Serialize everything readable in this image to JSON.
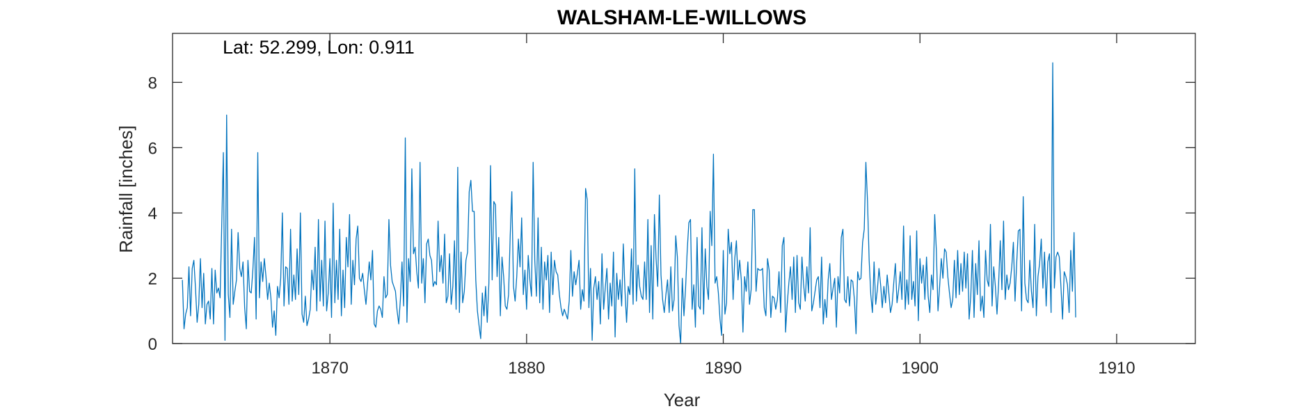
{
  "chart_data": {
    "type": "line",
    "title": "WALSHAM-LE-WILLOWS",
    "annotation": "Lat: 52.299, Lon: 0.911",
    "xlabel": "Year",
    "ylabel": "Rainfall [inches]",
    "xlim": [
      1862.0,
      1914.0
    ],
    "ylim": [
      0,
      9.5
    ],
    "xticks": [
      1870,
      1880,
      1890,
      1900,
      1910
    ],
    "yticks": [
      0,
      2,
      4,
      6,
      8
    ],
    "grid": false,
    "line_color": "#0072BD",
    "series": [
      {
        "x_start": 1862.5,
        "x_step": 0.08333333,
        "values": [
          1.95,
          0.45,
          0.9,
          1.1,
          2.35,
          0.85,
          2.3,
          2.55,
          1.7,
          0.65,
          1.2,
          2.6,
          1.1,
          2.15,
          0.6,
          1.2,
          1.3,
          0.75,
          2.3,
          0.6,
          2.25,
          1.55,
          1.7,
          1.4,
          3.6,
          5.85,
          0.1,
          7.0,
          1.5,
          0.8,
          3.5,
          1.2,
          1.6,
          1.95,
          3.4,
          2.3,
          2.05,
          2.5,
          1.1,
          0.45,
          2.55,
          1.6,
          1.55,
          2.25,
          3.25,
          0.75,
          5.85,
          1.4,
          2.5,
          1.9,
          2.6,
          2.05,
          1.35,
          1.85,
          1.4,
          0.5,
          1.0,
          0.25,
          1.75,
          1.4,
          2.0,
          4.0,
          1.15,
          2.35,
          2.3,
          1.2,
          3.5,
          1.3,
          2.1,
          1.35,
          2.9,
          1.5,
          4.0,
          0.9,
          0.65,
          1.45,
          0.55,
          0.75,
          1.05,
          2.25,
          1.65,
          2.95,
          1.0,
          3.8,
          1.3,
          2.55,
          1.15,
          3.75,
          1.0,
          1.55,
          2.6,
          0.8,
          4.3,
          1.25,
          2.55,
          1.35,
          3.5,
          0.85,
          2.25,
          1.1,
          3.25,
          2.35,
          3.95,
          1.2,
          2.55,
          1.8,
          3.2,
          3.6,
          2.0,
          1.9,
          2.15,
          1.65,
          1.2,
          1.85,
          2.5,
          1.95,
          2.85,
          0.6,
          0.5,
          1.0,
          1.15,
          1.05,
          0.8,
          2.05,
          1.4,
          1.5,
          3.8,
          2.4,
          1.9,
          1.75,
          1.6,
          1.0,
          0.6,
          1.35,
          2.5,
          1.15,
          6.3,
          0.65,
          2.6,
          1.9,
          5.35,
          2.75,
          2.95,
          2.2,
          1.7,
          5.55,
          1.85,
          2.6,
          1.25,
          3.05,
          3.2,
          2.7,
          2.55,
          1.75,
          1.9,
          1.8,
          3.75,
          2.2,
          2.7,
          1.85,
          3.35,
          1.25,
          1.45,
          2.75,
          1.2,
          1.75,
          3.15,
          1.05,
          5.4,
          0.95,
          2.8,
          1.25,
          1.6,
          2.55,
          2.8,
          4.65,
          5.0,
          4.05,
          4.05,
          1.95,
          1.0,
          0.55,
          0.15,
          1.55,
          0.85,
          1.75,
          0.65,
          1.85,
          5.45,
          1.95,
          4.35,
          4.25,
          2.05,
          3.25,
          0.85,
          2.65,
          2.05,
          1.15,
          1.05,
          1.5,
          3.3,
          4.65,
          1.75,
          1.3,
          2.05,
          3.2,
          2.35,
          3.85,
          1.5,
          2.25,
          1.05,
          2.7,
          1.95,
          1.45,
          5.55,
          2.55,
          1.45,
          3.85,
          1.25,
          2.95,
          1.05,
          2.5,
          1.95,
          2.7,
          0.95,
          2.8,
          1.5,
          2.55,
          2.2,
          2.1,
          1.5,
          1.1,
          0.85,
          1.05,
          0.9,
          0.75,
          1.3,
          2.85,
          1.45,
          2.2,
          1.8,
          2.15,
          2.55,
          1.05,
          1.65,
          1.3,
          4.75,
          4.4,
          1.1,
          2.3,
          0.1,
          1.7,
          2.05,
          1.35,
          1.9,
          0.6,
          2.75,
          1.05,
          1.7,
          2.3,
          0.75,
          1.85,
          1.15,
          2.8,
          0.2,
          2.15,
          1.35,
          1.95,
          1.15,
          3.05,
          1.65,
          0.65,
          1.75,
          1.5,
          2.9,
          1.2,
          5.35,
          1.3,
          2.4,
          1.75,
          1.45,
          1.35,
          2.5,
          1.35,
          3.8,
          0.95,
          3.0,
          0.75,
          3.95,
          2.6,
          1.75,
          4.55,
          2.1,
          1.35,
          0.95,
          1.5,
          1.95,
          0.95,
          2.35,
          1.0,
          1.35,
          3.3,
          2.65,
          0.55,
          0.0,
          2.0,
          0.85,
          1.7,
          2.85,
          3.7,
          3.8,
          1.05,
          1.8,
          0.5,
          3.25,
          1.15,
          1.05,
          3.55,
          0.9,
          2.9,
          1.75,
          1.35,
          4.05,
          3.0,
          5.8,
          1.85,
          2.05,
          1.55,
          0.75,
          0.25,
          2.85,
          0.9,
          1.25,
          3.5,
          2.75,
          3.1,
          1.35,
          2.6,
          3.15,
          1.95,
          2.55,
          1.95,
          0.35,
          2.05,
          1.6,
          2.5,
          1.2,
          1.65,
          4.1,
          4.1,
          1.6,
          2.3,
          2.25,
          2.25,
          2.3,
          1.1,
          0.85,
          2.6,
          2.25,
          0.8,
          1.45,
          1.4,
          1.05,
          1.35,
          2.2,
          0.95,
          3.0,
          3.25,
          0.35,
          1.2,
          1.85,
          2.35,
          1.35,
          2.65,
          0.95,
          2.7,
          1.25,
          1.05,
          2.65,
          1.8,
          1.3,
          2.35,
          1.55,
          3.55,
          1.0,
          1.25,
          1.6,
          1.95,
          2.05,
          1.1,
          2.65,
          0.6,
          1.35,
          0.8,
          1.95,
          2.45,
          1.35,
          1.7,
          2.0,
          0.5,
          2.05,
          1.55,
          3.25,
          3.5,
          1.35,
          1.25,
          2.05,
          1.15,
          1.95,
          1.9,
          1.35,
          0.3,
          2.2,
          1.95,
          2.0,
          3.1,
          3.5,
          5.55,
          4.35,
          2.55,
          1.5,
          0.95,
          2.5,
          1.2,
          1.65,
          2.3,
          1.8,
          1.1,
          1.75,
          1.25,
          2.1,
          1.55,
          0.95,
          1.2,
          1.85,
          2.45,
          1.25,
          1.65,
          2.2,
          1.35,
          3.6,
          1.05,
          1.95,
          1.2,
          3.3,
          1.35,
          1.9,
          1.15,
          3.45,
          0.7,
          2.6,
          1.85,
          2.4,
          1.35,
          2.65,
          1.45,
          0.95,
          2.1,
          1.65,
          3.95,
          2.85,
          1.0,
          1.75,
          2.6,
          2.0,
          2.9,
          2.8,
          2.05,
          1.55,
          1.1,
          1.35,
          2.55,
          1.4,
          2.85,
          1.5,
          2.45,
          1.6,
          2.8,
          1.7,
          2.75,
          0.75,
          1.45,
          2.85,
          0.8,
          2.45,
          1.5,
          3.15,
          1.0,
          1.45,
          0.8,
          2.85,
          1.95,
          1.75,
          3.65,
          1.15,
          2.35,
          1.75,
          0.9,
          1.85,
          3.15,
          1.65,
          3.75,
          1.35,
          2.1,
          1.65,
          1.85,
          2.35,
          3.1,
          1.3,
          2.45,
          3.45,
          3.5,
          1.0,
          4.5,
          1.85,
          1.35,
          1.25,
          2.55,
          1.6,
          1.1,
          3.65,
          0.85,
          2.05,
          2.45,
          3.2,
          1.7,
          2.8,
          1.15,
          2.5,
          2.75,
          0.95,
          8.6,
          1.7,
          2.65,
          2.8,
          2.65,
          1.75,
          0.75,
          2.2,
          2.05,
          1.8,
          0.95,
          2.85,
          1.6,
          3.4,
          0.8
        ]
      }
    ]
  }
}
